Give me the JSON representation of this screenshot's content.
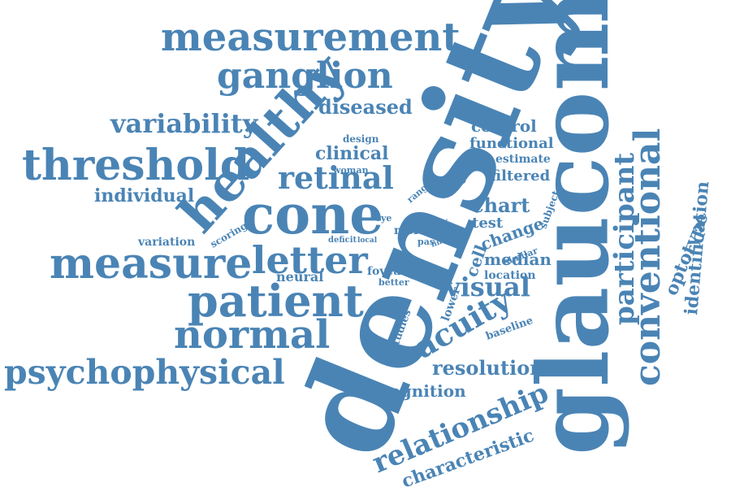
{
  "color": "#4a84b5",
  "words": [
    "density",
    "glaucoma",
    "measurement",
    "ganglion",
    "cone",
    "healthy",
    "threshold",
    "measure",
    "patient",
    "normal",
    "psychophysical",
    "letter",
    "retinal",
    "variability",
    "diseased",
    "conventional",
    "participant",
    "visual",
    "acuity",
    "relationship",
    "resolution",
    "characteristic",
    "recognition",
    "optotype",
    "identification",
    "individual",
    "clinical",
    "functional",
    "filtered",
    "control",
    "chart",
    "estimate",
    "design",
    "woman",
    "ratio",
    "range",
    "test",
    "change",
    "cell",
    "median",
    "location",
    "similar",
    "subject",
    "year",
    "limit",
    "pas",
    "more",
    "local",
    "deficit",
    "eye",
    "scoring",
    "variation",
    "neural",
    "foveal",
    "better",
    "lower",
    "studies",
    "baseline"
  ]
}
